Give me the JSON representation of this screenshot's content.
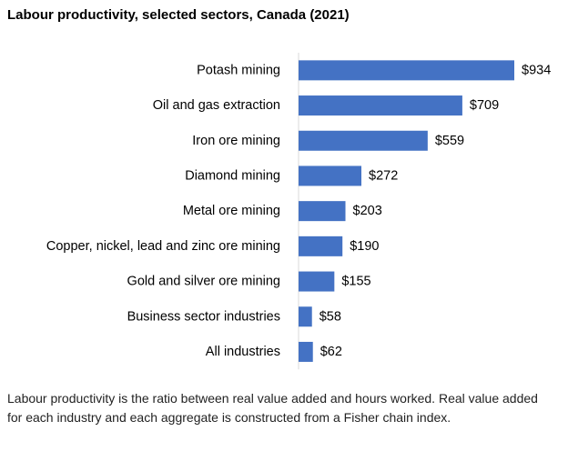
{
  "title": "Labour productivity, selected sectors, Canada (2021)",
  "note": "Labour productivity is the ratio between real value added and hours worked. Real value added for each industry and each aggregate is constructed from a Fisher chain index.",
  "chart_data": {
    "type": "bar",
    "orientation": "horizontal",
    "title": "Labour productivity, selected sectors, Canada (2021)",
    "categories": [
      "Potash mining",
      "Oil and gas extraction",
      "Iron ore mining",
      "Diamond mining",
      "Metal ore mining",
      "Copper, nickel, lead and zinc ore mining",
      "Gold and silver ore mining",
      "Business sector industries",
      "All industries"
    ],
    "values": [
      934,
      709,
      559,
      272,
      203,
      190,
      155,
      58,
      62
    ],
    "data_labels": [
      "$934",
      "$709",
      "$559",
      "$272",
      "$203",
      "$190",
      "$155",
      "$58",
      "$62"
    ],
    "xlim": [
      0,
      934
    ],
    "bar_color": "#4472C4",
    "grid": false,
    "legend": "none"
  }
}
